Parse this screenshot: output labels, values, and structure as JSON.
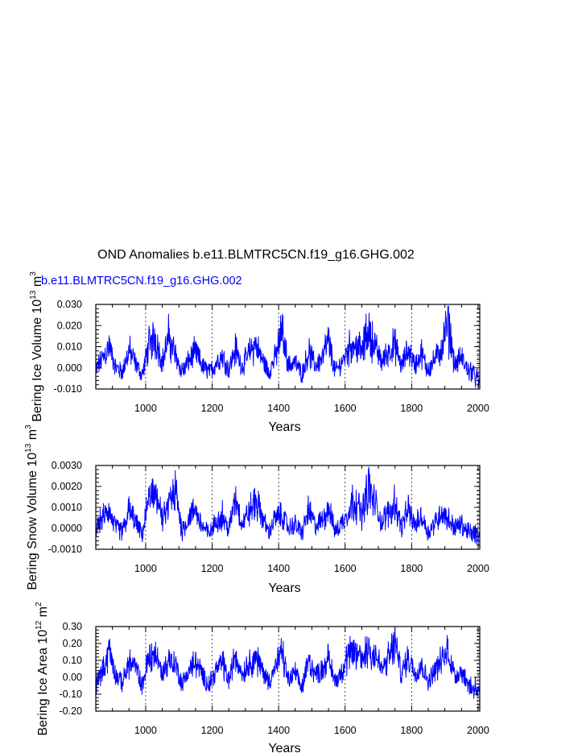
{
  "title": "OND Anomalies b.e11.BLMTRC5CN.f19_g16.GHG.002",
  "legend_label": "b.e11.BLMTRC5CN.f19_g16.GHG.002",
  "colors": {
    "series": "#0000ff",
    "axes": "#000000",
    "gridlines": "#000000",
    "legend": "#0000ff"
  },
  "chart_data": [
    {
      "type": "line",
      "ylabel_main": "Bering Ice Volume 10",
      "ylabel_exp": "13",
      "ylabel_unit": "m",
      "ylabel_unit_exp": "3",
      "xlabel": "Years",
      "xlim": [
        850,
        2005
      ],
      "ylim": [
        -0.01,
        0.03
      ],
      "xticks": [
        1000,
        1200,
        1400,
        1600,
        1800,
        2000
      ],
      "yticks": [
        -0.01,
        0.0,
        0.01,
        0.02,
        0.03
      ],
      "ytick_labels": [
        "-0.010",
        "0.000",
        "0.010",
        "0.020",
        "0.030"
      ],
      "vlines": [
        1000,
        1200,
        1400,
        1600,
        1800,
        2000
      ],
      "grid": "dashed vertical lines at x ticks",
      "series": [
        {
          "x": [
            850,
            870,
            890,
            910,
            930,
            950,
            970,
            990,
            1010,
            1030,
            1050,
            1070,
            1090,
            1110,
            1130,
            1150,
            1170,
            1190,
            1210,
            1230,
            1250,
            1270,
            1290,
            1310,
            1330,
            1350,
            1370,
            1390,
            1410,
            1430,
            1450,
            1470,
            1490,
            1510,
            1530,
            1550,
            1570,
            1590,
            1610,
            1630,
            1650,
            1670,
            1690,
            1710,
            1730,
            1750,
            1770,
            1790,
            1810,
            1830,
            1850,
            1870,
            1890,
            1910,
            1930,
            1950,
            1970,
            1990,
            2005
          ],
          "values": [
            0.0,
            0.006,
            0.013,
            0.001,
            -0.002,
            0.011,
            0.003,
            -0.004,
            0.015,
            0.018,
            0.004,
            0.019,
            0.008,
            -0.002,
            0.005,
            0.01,
            0.002,
            -0.003,
            0.003,
            0.008,
            -0.001,
            0.012,
            0.001,
            0.009,
            0.014,
            0.006,
            -0.002,
            0.007,
            0.023,
            0.002,
            0.004,
            -0.003,
            0.01,
            0.002,
            0.006,
            0.017,
            -0.002,
            0.004,
            0.012,
            0.015,
            0.01,
            0.023,
            0.013,
            0.004,
            0.01,
            0.014,
            0.001,
            0.012,
            0.002,
            0.009,
            -0.002,
            0.006,
            0.011,
            0.026,
            0.002,
            0.007,
            -0.002,
            -0.004,
            -0.007
          ]
        }
      ]
    },
    {
      "type": "line",
      "ylabel_main": "Bering Snow Volume 10",
      "ylabel_exp": "13",
      "ylabel_unit": "m",
      "ylabel_unit_exp": "3",
      "xlabel": "Years",
      "xlim": [
        850,
        2005
      ],
      "ylim": [
        -0.001,
        0.003
      ],
      "xticks": [
        1000,
        1200,
        1400,
        1600,
        1800,
        2000
      ],
      "yticks": [
        -0.001,
        0.0,
        0.001,
        0.002,
        0.003
      ],
      "ytick_labels": [
        "-0.0010",
        "0.0000",
        "0.0010",
        "0.0020",
        "0.0030"
      ],
      "vlines": [
        1000,
        1200,
        1400,
        1600,
        1800,
        2000
      ],
      "grid": "dashed vertical lines at x ticks",
      "series": [
        {
          "x": [
            850,
            870,
            890,
            910,
            930,
            950,
            970,
            990,
            1010,
            1030,
            1050,
            1070,
            1090,
            1110,
            1130,
            1150,
            1170,
            1190,
            1210,
            1230,
            1250,
            1270,
            1290,
            1310,
            1330,
            1350,
            1370,
            1390,
            1410,
            1430,
            1450,
            1470,
            1490,
            1510,
            1530,
            1550,
            1570,
            1590,
            1610,
            1630,
            1650,
            1670,
            1690,
            1710,
            1730,
            1750,
            1770,
            1790,
            1810,
            1830,
            1850,
            1870,
            1890,
            1910,
            1930,
            1950,
            1970,
            1990,
            2005
          ],
          "values": [
            0.0,
            0.0007,
            0.001,
            0.0001,
            -0.0002,
            0.0011,
            0.0004,
            -0.0003,
            0.0018,
            0.0023,
            0.0005,
            0.0014,
            0.0022,
            -0.0002,
            0.0007,
            0.0011,
            0.0002,
            -0.0003,
            0.0004,
            0.0009,
            -0.0001,
            0.0019,
            0.0003,
            0.001,
            0.0016,
            0.0008,
            -0.0002,
            0.0007,
            0.0008,
            0.0001,
            0.0003,
            -0.0003,
            0.0012,
            0.0002,
            0.0005,
            0.0013,
            -0.0002,
            0.0004,
            0.0011,
            0.0018,
            0.0009,
            0.0025,
            0.0015,
            0.0004,
            0.001,
            0.0016,
            0.0001,
            0.0012,
            0.0002,
            0.0008,
            -0.0002,
            0.0004,
            0.001,
            0.0006,
            0.0001,
            0.0003,
            -0.0002,
            -0.0003,
            -0.0006
          ]
        }
      ]
    },
    {
      "type": "line",
      "ylabel_main": "Bering Ice Area 10",
      "ylabel_exp": "12",
      "ylabel_unit": "m",
      "ylabel_unit_exp": "2",
      "xlabel": "Years",
      "xlim": [
        850,
        2005
      ],
      "ylim": [
        -0.2,
        0.3
      ],
      "xticks": [
        1000,
        1200,
        1400,
        1600,
        1800,
        2000
      ],
      "yticks": [
        -0.2,
        -0.1,
        0.0,
        0.1,
        0.2,
        0.3
      ],
      "ytick_labels": [
        "-0.20",
        "-0.10",
        "0.00",
        "0.10",
        "0.20",
        "0.30"
      ],
      "vlines": [
        1000,
        1200,
        1400,
        1600,
        1800,
        2000
      ],
      "grid": "dashed vertical lines at x ticks",
      "series": [
        {
          "x": [
            850,
            870,
            890,
            910,
            930,
            950,
            970,
            990,
            1010,
            1030,
            1050,
            1070,
            1090,
            1110,
            1130,
            1150,
            1170,
            1190,
            1210,
            1230,
            1250,
            1270,
            1290,
            1310,
            1330,
            1350,
            1370,
            1390,
            1410,
            1430,
            1450,
            1470,
            1490,
            1510,
            1530,
            1550,
            1570,
            1590,
            1610,
            1630,
            1650,
            1670,
            1690,
            1710,
            1730,
            1750,
            1770,
            1790,
            1810,
            1830,
            1850,
            1870,
            1890,
            1910,
            1930,
            1950,
            1970,
            1990,
            2005
          ],
          "values": [
            -0.05,
            0.05,
            0.2,
            0.02,
            -0.03,
            0.12,
            0.08,
            -0.05,
            0.17,
            0.18,
            0.03,
            0.14,
            0.1,
            -0.04,
            0.06,
            0.12,
            0.03,
            -0.06,
            0.05,
            0.13,
            -0.02,
            0.17,
            0.03,
            0.11,
            0.15,
            0.07,
            -0.03,
            0.08,
            0.18,
            -0.02,
            0.04,
            -0.08,
            0.14,
            0.03,
            0.06,
            0.15,
            -0.03,
            0.05,
            0.16,
            0.19,
            0.14,
            0.23,
            0.18,
            0.06,
            0.14,
            0.25,
            0.03,
            0.17,
            0.04,
            0.1,
            -0.03,
            0.07,
            0.12,
            0.2,
            0.01,
            0.06,
            -0.05,
            -0.08,
            -0.12
          ]
        }
      ]
    }
  ]
}
